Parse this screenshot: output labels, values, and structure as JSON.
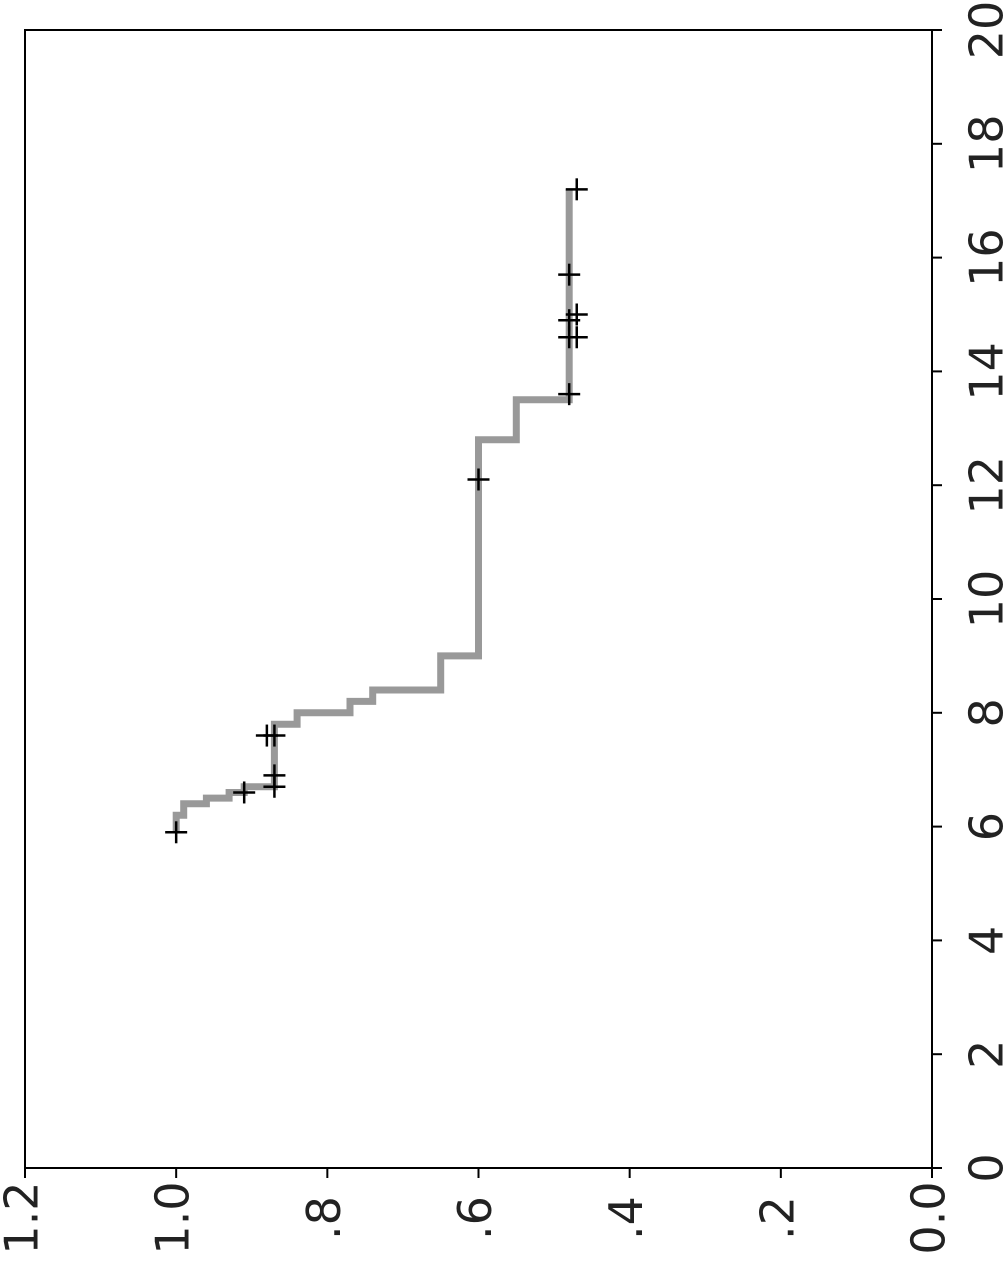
{
  "chart_data": {
    "type": "line",
    "subtype": "step-survival-curve",
    "rotation": "rotated 90 degrees counter-clockwise",
    "title": "",
    "xlabel": "",
    "ylabel": "",
    "xlim": [
      0,
      20
    ],
    "ylim": [
      0.0,
      1.2
    ],
    "xticks": [
      0,
      2,
      4,
      6,
      8,
      10,
      12,
      14,
      16,
      18,
      20
    ],
    "xtick_labels": [
      "0",
      "2",
      "4",
      "6",
      "8",
      "10",
      "12",
      "14",
      "16",
      "18",
      "20"
    ],
    "yticks": [
      0.0,
      0.2,
      0.4,
      0.6,
      0.8,
      1.0,
      1.2
    ],
    "ytick_labels": [
      "0.0",
      ".2",
      ".4",
      ".6",
      ".8",
      "1.0",
      "1.2"
    ],
    "grid": false,
    "legend": "none",
    "series": [
      {
        "line_color": "#999999",
        "steps": [
          {
            "x": 5.9,
            "y": 1.0
          },
          {
            "x": 6.2,
            "y": 0.99
          },
          {
            "x": 6.4,
            "y": 0.96
          },
          {
            "x": 6.5,
            "y": 0.93
          },
          {
            "x": 6.6,
            "y": 0.91
          },
          {
            "x": 6.7,
            "y": 0.87
          },
          {
            "x": 7.8,
            "y": 0.84
          },
          {
            "x": 8.0,
            "y": 0.77
          },
          {
            "x": 8.2,
            "y": 0.74
          },
          {
            "x": 8.4,
            "y": 0.65
          },
          {
            "x": 9.0,
            "y": 0.6
          },
          {
            "x": 12.8,
            "y": 0.55
          },
          {
            "x": 13.5,
            "y": 0.48
          },
          {
            "x": 17.2,
            "y": 0.48
          }
        ],
        "censored_marks": [
          {
            "x": 5.9,
            "y": 1.0
          },
          {
            "x": 6.6,
            "y": 0.91
          },
          {
            "x": 6.7,
            "y": 0.87
          },
          {
            "x": 6.9,
            "y": 0.87
          },
          {
            "x": 7.6,
            "y": 0.87
          },
          {
            "x": 7.6,
            "y": 0.88
          },
          {
            "x": 12.1,
            "y": 0.6
          },
          {
            "x": 13.6,
            "y": 0.48
          },
          {
            "x": 14.6,
            "y": 0.48
          },
          {
            "x": 14.6,
            "y": 0.47
          },
          {
            "x": 14.9,
            "y": 0.48
          },
          {
            "x": 15.0,
            "y": 0.47
          },
          {
            "x": 15.7,
            "y": 0.48
          },
          {
            "x": 17.2,
            "y": 0.47
          }
        ]
      }
    ]
  }
}
